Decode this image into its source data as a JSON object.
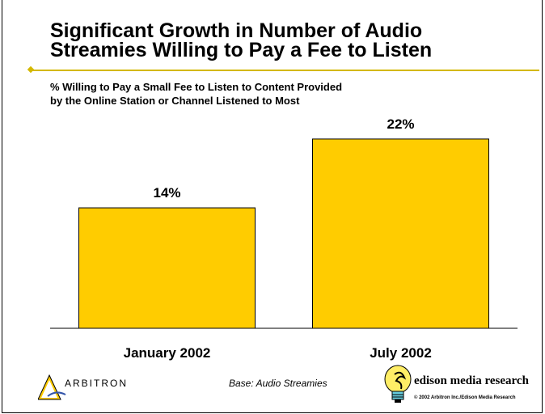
{
  "slide": {
    "title_line1": "Significant Growth in Number of Audio",
    "title_line2": "Streamies Willing to Pay a Fee to Listen",
    "subtitle_line1": "% Willing to Pay a Small Fee to Listen to Content Provided",
    "subtitle_line2": "by the Online Station or Channel Listened to Most",
    "accent_color": "#d4b800"
  },
  "chart_data": {
    "type": "bar",
    "categories": [
      "January 2002",
      "July 2002"
    ],
    "values": [
      14,
      22
    ],
    "value_labels": [
      "14%",
      "22%"
    ],
    "bar_color": "#ffcc00",
    "ylim": [
      0,
      25
    ],
    "grid": false,
    "legend": "none"
  },
  "footer": {
    "base_note": "Base: Audio Streamies",
    "arbitron_label": "ARBITRON",
    "edison_label": "edison media research",
    "copyright": "© 2002 Arbitron Inc./Edison Media Research"
  }
}
